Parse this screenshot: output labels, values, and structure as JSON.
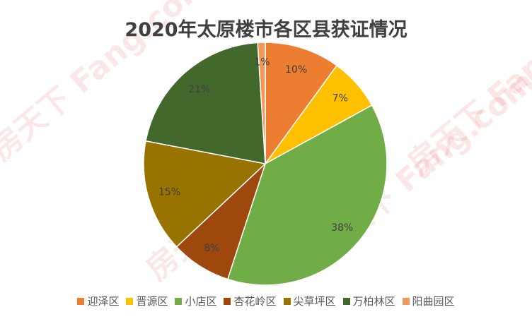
{
  "watermark": {
    "text": "房天下 Fang.com"
  },
  "chart_data": {
    "type": "pie",
    "title": "2020年太原楼市各区县获证情况",
    "legend_position": "bottom",
    "start_angle_deg": 0,
    "direction": "clockwise",
    "slices": [
      {
        "name": "迎泽区",
        "value": 10,
        "label": "10%",
        "color": "#ED7D31"
      },
      {
        "name": "晋源区",
        "value": 7,
        "label": "7%",
        "color": "#FFC000"
      },
      {
        "name": "小店区",
        "value": 38,
        "label": "38%",
        "color": "#70AD47"
      },
      {
        "name": "杏花岭区",
        "value": 8,
        "label": "8%",
        "color": "#9E480E"
      },
      {
        "name": "尖草坪区",
        "value": 15,
        "label": "15%",
        "color": "#997300"
      },
      {
        "name": "万柏林区",
        "value": 21,
        "label": "21%",
        "color": "#43682B"
      },
      {
        "name": "阳曲园区",
        "value": 1,
        "label": "1%",
        "color": "#F1975A"
      }
    ]
  }
}
